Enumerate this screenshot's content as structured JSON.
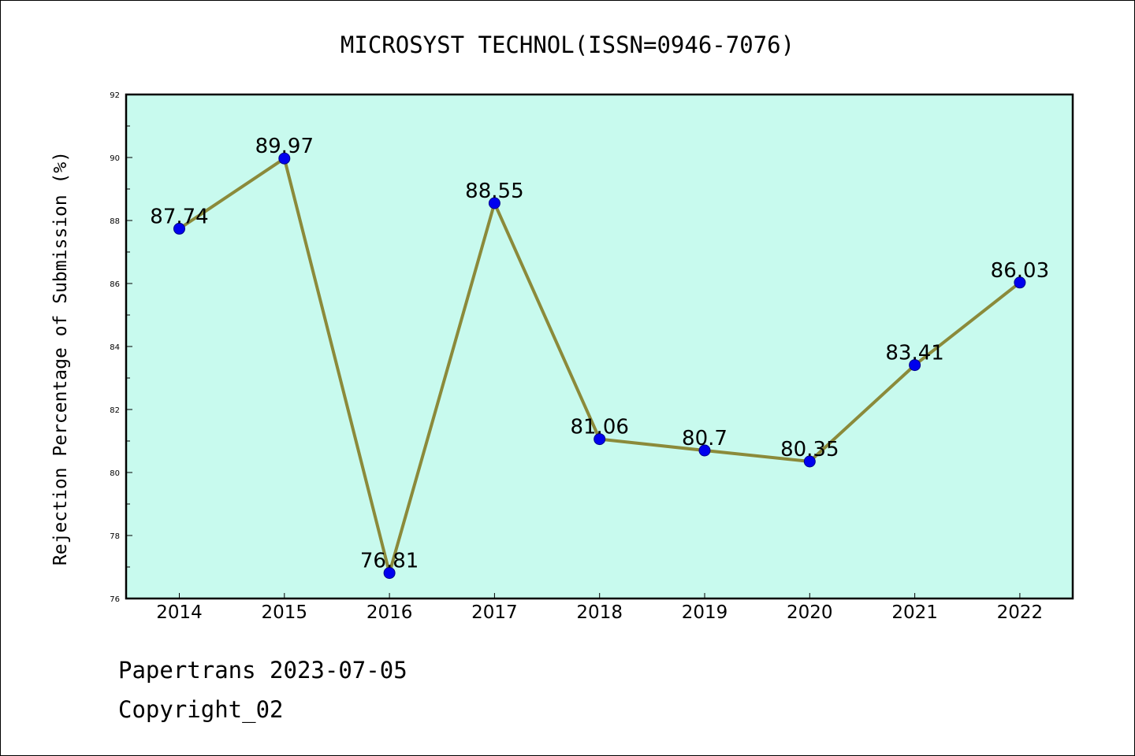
{
  "chart_data": {
    "type": "line",
    "title": "MICROSYST TECHNOL(ISSN=0946-7076)",
    "ylabel": "Rejection Percentage of Submission (%)",
    "xlabel": "",
    "categories": [
      "2014",
      "2015",
      "2016",
      "2017",
      "2018",
      "2019",
      "2020",
      "2021",
      "2022"
    ],
    "values": [
      87.74,
      89.97,
      76.81,
      88.55,
      81.06,
      80.7,
      80.35,
      83.41,
      86.03
    ],
    "data_labels": [
      "87.74",
      "89.97",
      "76.81",
      "88.55",
      "81.06",
      "80.7",
      "80.35",
      "83.41",
      "86.03"
    ],
    "ylim": [
      76,
      92
    ],
    "yticks": [
      "76",
      "78",
      "80",
      "82",
      "84",
      "86",
      "88",
      "90",
      "92"
    ],
    "grid": false,
    "legend": "none",
    "colors": {
      "plot_background": "#c8faee",
      "line": "#8b8a3a",
      "marker": "#0000ee"
    }
  },
  "footer": {
    "line1": "Papertrans 2023-07-05",
    "line2": "Copyright_02"
  }
}
